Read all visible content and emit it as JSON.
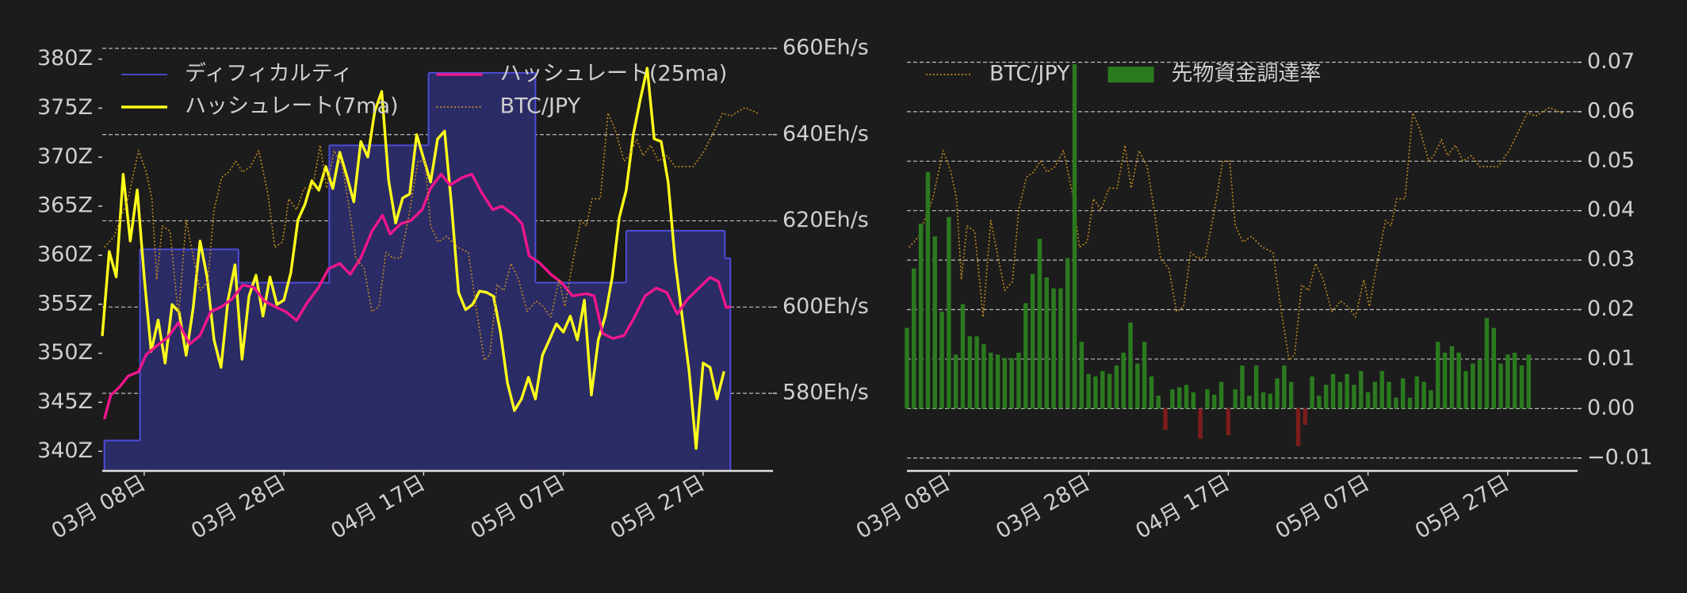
{
  "chart_data": [
    {
      "type": "line",
      "legend": "upper left",
      "legend_ncol": 2,
      "grid": "y2",
      "xlim": [
        -6,
        90
      ],
      "xticks": [
        {
          "value": 0,
          "label": "03月 08日"
        },
        {
          "value": 20,
          "label": "03月 28日"
        },
        {
          "value": 40,
          "label": "04月 17日"
        },
        {
          "value": 60,
          "label": "05月 07日"
        },
        {
          "value": 80,
          "label": "05月 27日"
        }
      ],
      "ylim": [
        338,
        381.1
      ],
      "yticks": [
        {
          "value": 340,
          "label": "340Z"
        },
        {
          "value": 345,
          "label": "345Z"
        },
        {
          "value": 350,
          "label": "350Z"
        },
        {
          "value": 355,
          "label": "355Z"
        },
        {
          "value": 360,
          "label": "360Z"
        },
        {
          "value": 365,
          "label": "365Z"
        },
        {
          "value": 370,
          "label": "370Z"
        },
        {
          "value": 375,
          "label": "375Z"
        },
        {
          "value": 380,
          "label": "380Z"
        }
      ],
      "y2lim": [
        562,
        660
      ],
      "y2ticks": [
        {
          "value": 580,
          "label": "580Eh/s"
        },
        {
          "value": 600,
          "label": "600Eh/s"
        },
        {
          "value": 620,
          "label": "620Eh/s"
        },
        {
          "value": 640,
          "label": "640Eh/s"
        },
        {
          "value": 660,
          "label": "660Eh/s"
        }
      ],
      "y3lim": [
        0,
        100
      ],
      "series": [
        {
          "name": "ディフィカルティ",
          "type": "step",
          "axis": "y",
          "color": "#4d4dd9",
          "fill": "#2b2b66",
          "x": [
            -5.7,
            -0.6,
            13.5,
            26.5,
            40.7,
            56,
            69,
            83.1,
            83.9
          ],
          "values": [
            341.1,
            360.6,
            357.2,
            371.2,
            378.6,
            357.2,
            362.5,
            359.7,
            359.7
          ]
        },
        {
          "name": "ハッシュレート(7ma)",
          "type": "line",
          "axis": "y2",
          "color": "#ffff1a",
          "x": [
            -6,
            -5,
            -4,
            -3,
            -2,
            -1,
            0,
            1,
            2,
            3,
            4,
            5,
            6,
            7,
            8,
            9,
            10,
            11,
            12,
            13,
            14,
            15,
            16,
            17,
            18,
            19,
            20,
            21,
            22,
            23,
            24,
            25,
            26,
            27,
            28,
            29,
            30,
            31,
            32,
            33,
            34,
            35,
            36,
            37,
            38,
            39,
            40,
            41,
            42,
            43,
            44,
            45,
            46,
            47,
            48,
            49,
            50,
            51,
            52,
            53,
            54,
            55,
            56,
            57,
            58,
            59,
            60,
            61,
            62,
            63,
            64,
            65,
            66,
            67,
            68,
            69,
            70,
            71,
            72,
            73,
            74,
            75,
            76,
            77,
            78,
            79,
            80,
            81,
            82,
            83
          ],
          "values": [
            593.3,
            612.9,
            607,
            630.8,
            615.3,
            627.2,
            607,
            589.7,
            597,
            587,
            600.6,
            598.8,
            588.8,
            599.7,
            615.3,
            607,
            592.4,
            586,
            601.6,
            609.8,
            587.9,
            602.5,
            607.4,
            597.9,
            607,
            600.6,
            601.6,
            608,
            620.2,
            623.8,
            629.3,
            627.1,
            632.6,
            627.5,
            635.9,
            630.4,
            624.4,
            638.4,
            634.8,
            645.4,
            650,
            629.3,
            619.5,
            625.3,
            626.2,
            640,
            634.4,
            629,
            639,
            640.8,
            623.5,
            603.4,
            599.4,
            600.6,
            603.7,
            603.4,
            602.5,
            594.2,
            582.4,
            576,
            578.7,
            583.7,
            578.7,
            588.8,
            592.4,
            596.1,
            594.2,
            597.9,
            592.4,
            601.6,
            579.6,
            592.4,
            597.9,
            607,
            620.7,
            627.1,
            640,
            648.1,
            655.4,
            639,
            638.4,
            629,
            610.7,
            597.9,
            585.1,
            567.2,
            587,
            586,
            578.7,
            585.1
          ]
        },
        {
          "name": "ハッシュレート(25ma)",
          "type": "line",
          "axis": "y2",
          "color": "#f0168c",
          "x": [
            -5.7,
            -4.8,
            -3.5,
            -2.3,
            -0.8,
            0.3,
            1.8,
            3.4,
            4.9,
            6.5,
            8,
            9.5,
            11.1,
            12.6,
            14.1,
            15.7,
            17.2,
            18.7,
            20.3,
            21.8,
            23.3,
            24.9,
            26.4,
            28,
            29.5,
            31,
            32.6,
            34.1,
            35.2,
            36.7,
            38.2,
            39.8,
            41,
            42.5,
            43.8,
            45.6,
            46.9,
            48.4,
            49.9,
            51.2,
            53,
            54.1,
            55.1,
            56.7,
            58.2,
            59.8,
            61.3,
            63.3,
            64.4,
            65.6,
            67.1,
            68.7,
            70.2,
            71.7,
            73.3,
            74.8,
            76.3,
            77.8,
            79.4,
            81,
            82.2,
            83.3,
            84
          ],
          "values": [
            574,
            579.5,
            581.5,
            584,
            585,
            589,
            591,
            593,
            596.4,
            591.4,
            593.4,
            598.9,
            600.1,
            601.9,
            605.1,
            604.6,
            601.4,
            600.1,
            598.9,
            596.9,
            600.9,
            604.4,
            608.9,
            610.1,
            607.6,
            611.4,
            617.6,
            621.3,
            616.9,
            619.3,
            620.1,
            622.6,
            627.6,
            630.8,
            628.3,
            630.1,
            630.8,
            626.3,
            622.6,
            623.4,
            621.3,
            619.3,
            611.9,
            610.1,
            607.6,
            605.6,
            602.6,
            603.1,
            602.6,
            593.9,
            592.7,
            593.4,
            597.7,
            602.6,
            604.4,
            603.4,
            598.4,
            601.9,
            604.4,
            606.9,
            605.9,
            599.9,
            600.1
          ]
        },
        {
          "name": "BTC/JPY",
          "type": "line",
          "axis": "y3",
          "style": "dotted",
          "color": "#c08a1e",
          "x": [
            -5.7,
            -4.3,
            -3.2,
            -2.3,
            -0.8,
            0.3,
            1.1,
            1.8,
            2.6,
            3.7,
            4.9,
            6,
            6.9,
            8,
            9.1,
            10,
            11.1,
            12.1,
            13.1,
            14.1,
            15.2,
            16.4,
            17.7,
            18.7,
            19.8,
            20.7,
            21.8,
            22.9,
            24.1,
            25.2,
            26.1,
            27.2,
            28.4,
            29.5,
            30.3,
            31.5,
            32.6,
            33.6,
            34.6,
            35.6,
            36.7,
            37.9,
            39.2,
            40.2,
            41,
            42.1,
            43.3,
            44.9,
            46.4,
            47.6,
            48.7,
            49.5,
            50.5,
            51.5,
            52.5,
            53.6,
            54.8,
            56.1,
            57.1,
            58.2,
            59.4,
            60.2,
            61.3,
            62.5,
            63.3,
            64.1,
            65.3,
            66.4,
            67.4,
            68.7,
            69.4,
            70.5,
            71.4,
            72.5,
            73.6,
            74.8,
            76,
            77.1,
            78.6,
            80.2,
            81.7,
            82.8,
            84,
            86,
            88
          ],
          "values": [
            52.9,
            55.5,
            60.6,
            64.4,
            75.8,
            70.7,
            64.4,
            45.3,
            58,
            56.7,
            36.4,
            59.3,
            51.7,
            42.7,
            44.8,
            61.8,
            69.5,
            70.7,
            73.3,
            70.7,
            72,
            75.8,
            65.6,
            52.9,
            54.2,
            64.4,
            61.8,
            66.9,
            66.9,
            77.1,
            66.9,
            75.8,
            72,
            60.6,
            50.4,
            47.8,
            37.7,
            38.9,
            51.7,
            50.4,
            50.4,
            60.6,
            73.3,
            73.3,
            58,
            54.2,
            55.5,
            52.9,
            51.7,
            37.7,
            26.2,
            27.5,
            44,
            42.7,
            49.1,
            45.3,
            37.7,
            40.2,
            38.9,
            36.4,
            45.3,
            38.9,
            49.1,
            59.3,
            58,
            64.4,
            64.4,
            84.7,
            80.9,
            73.3,
            74.6,
            78.4,
            74.6,
            77.1,
            73.3,
            74.6,
            72,
            72,
            72,
            75.8,
            80.9,
            84.7,
            84,
            86,
            84.5
          ]
        }
      ]
    },
    {
      "type": "bar",
      "legend": "upper left",
      "legend_ncol": 2,
      "grid": "y",
      "y_side": "right",
      "xlim": [
        -6,
        90
      ],
      "xticks": [
        {
          "value": 0,
          "label": "03月 08日"
        },
        {
          "value": 20,
          "label": "03月 28日"
        },
        {
          "value": 40,
          "label": "04月 17日"
        },
        {
          "value": 60,
          "label": "05月 07日"
        },
        {
          "value": 80,
          "label": "05月 27日"
        }
      ],
      "ylim": [
        -0.0126,
        0.0728
      ],
      "yticks": [
        {
          "value": -0.01,
          "label": "−0.01"
        },
        {
          "value": 0,
          "label": "0.00"
        },
        0.01,
        0.02,
        0.03,
        0.04,
        0.05,
        0.06,
        0.07
      ],
      "y3lim": [
        0,
        100
      ],
      "series": [
        {
          "name": "BTC/JPY",
          "type": "line",
          "axis": "y3",
          "style": "dotted",
          "color": "#c08a1e",
          "x": [
            -5.7,
            -4.3,
            -3.2,
            -2.3,
            -0.8,
            0.3,
            1.1,
            1.8,
            2.6,
            3.7,
            4.9,
            6,
            6.9,
            8,
            9.1,
            10,
            11.1,
            12.1,
            13.1,
            14.1,
            15.2,
            16.4,
            17.7,
            18.7,
            19.8,
            20.7,
            21.8,
            22.9,
            24.1,
            25.2,
            26.1,
            27.2,
            28.4,
            29.5,
            30.3,
            31.5,
            32.6,
            33.6,
            34.6,
            35.6,
            36.7,
            37.9,
            39.2,
            40.2,
            41,
            42.1,
            43.3,
            44.9,
            46.4,
            47.6,
            48.7,
            49.5,
            50.5,
            51.5,
            52.5,
            53.6,
            54.8,
            56.1,
            57.1,
            58.2,
            59.4,
            60.2,
            61.3,
            62.5,
            63.3,
            64.1,
            65.3,
            66.4,
            67.4,
            68.7,
            69.4,
            70.5,
            71.4,
            72.5,
            73.6,
            74.8,
            76,
            77.1,
            78.6,
            80.2,
            81.7,
            82.8,
            84,
            86,
            88
          ],
          "values": [
            52.9,
            55.5,
            60.6,
            64.4,
            75.8,
            70.7,
            64.4,
            45.3,
            58,
            56.7,
            36.4,
            59.3,
            51.7,
            42.7,
            44.8,
            61.8,
            69.5,
            70.7,
            73.3,
            70.7,
            72,
            75.8,
            65.6,
            52.9,
            54.2,
            64.4,
            61.8,
            66.9,
            66.9,
            77.1,
            66.9,
            75.8,
            72,
            60.6,
            50.4,
            47.8,
            37.7,
            38.9,
            51.7,
            50.4,
            50.4,
            60.6,
            73.3,
            73.3,
            58,
            54.2,
            55.5,
            52.9,
            51.7,
            37.7,
            26.2,
            27.5,
            44,
            42.7,
            49.1,
            45.3,
            37.7,
            40.2,
            38.9,
            36.4,
            45.3,
            38.9,
            49.1,
            59.3,
            58,
            64.4,
            64.4,
            84.7,
            80.9,
            73.3,
            74.6,
            78.4,
            74.6,
            77.1,
            73.3,
            74.6,
            72,
            72,
            72,
            75.8,
            80.9,
            84.7,
            84,
            86,
            84.5
          ]
        },
        {
          "name": "先物資金調達率",
          "type": "bar",
          "axis": "y",
          "color": "#2b7a1f",
          "negative_color": "#7d1c1c",
          "x": [
            -6,
            -5,
            -4,
            -3,
            -2,
            -1,
            0,
            1,
            2,
            3,
            4,
            5,
            6,
            7,
            8,
            9,
            10,
            11,
            12,
            13,
            14,
            15,
            16,
            17,
            18,
            19,
            20,
            21,
            22,
            23,
            24,
            25,
            26,
            27,
            28,
            29,
            30,
            31,
            32,
            33,
            34,
            35,
            36,
            37,
            38,
            39,
            40,
            41,
            42,
            43,
            44,
            45,
            46,
            47,
            48,
            49,
            50,
            51,
            52,
            53,
            54,
            55,
            56,
            57,
            58,
            59,
            60,
            61,
            62,
            63,
            64,
            65,
            66,
            67,
            68,
            69,
            70,
            71,
            72,
            73,
            74,
            75,
            76,
            77,
            78,
            79,
            80,
            81,
            82,
            83
          ],
          "values": [
            0.0163,
            0.0283,
            0.0374,
            0.0478,
            0.0348,
            0.0196,
            0.0387,
            0.0109,
            0.0211,
            0.0146,
            0.0146,
            0.013,
            0.0113,
            0.0109,
            0.0102,
            0.0102,
            0.0113,
            0.0213,
            0.0272,
            0.0343,
            0.0265,
            0.0243,
            0.0243,
            0.0304,
            0.0696,
            0.0135,
            0.007,
            0.0065,
            0.0076,
            0.007,
            0.0087,
            0.0113,
            0.0174,
            0.0091,
            0.0135,
            0.0065,
            0.0026,
            -0.0043,
            0.0039,
            0.0043,
            0.0048,
            0.0033,
            -0.0061,
            0.0039,
            0.0028,
            0.0054,
            -0.0054,
            0.0039,
            0.0087,
            0.0026,
            0.0087,
            0.0033,
            0.003,
            0.0061,
            0.0087,
            0.0054,
            -0.0076,
            -0.0033,
            0.0065,
            0.0026,
            0.0048,
            0.007,
            0.0054,
            0.007,
            0.0048,
            0.0076,
            0.0033,
            0.0054,
            0.0076,
            0.0054,
            0.0022,
            0.0061,
            0.0022,
            0.0065,
            0.0054,
            0.0037,
            0.0135,
            0.0113,
            0.0126,
            0.0113,
            0.0076,
            0.0091,
            0.0098,
            0.0183,
            0.0163,
            0.0091,
            0.0109,
            0.0113,
            0.0087,
            0.0109
          ]
        }
      ]
    }
  ]
}
